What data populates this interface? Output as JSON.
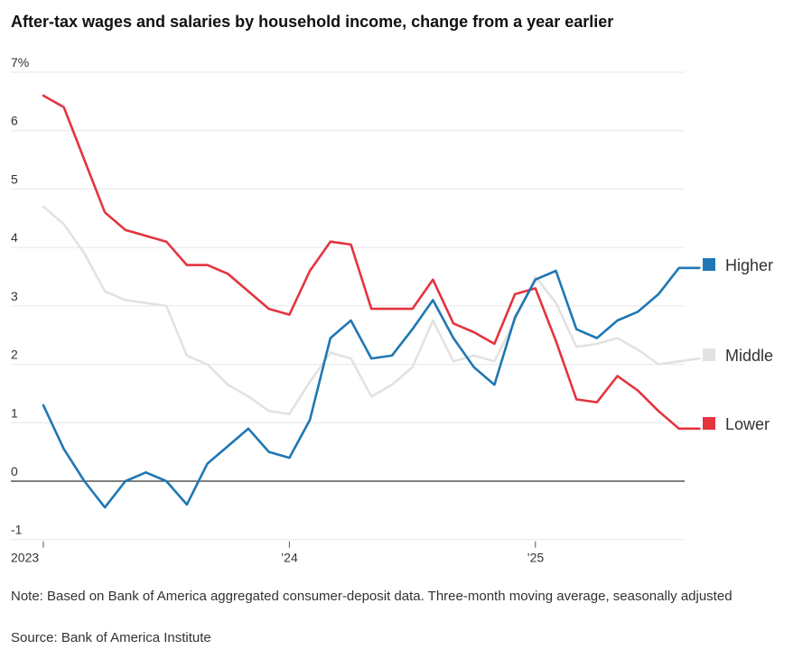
{
  "chart_data": {
    "type": "line",
    "title": "After-tax wages and salaries by household income, change from a year earlier",
    "xlabel": "",
    "ylabel": "",
    "x": [
      "2023-01",
      "2023-02",
      "2023-03",
      "2023-04",
      "2023-05",
      "2023-06",
      "2023-07",
      "2023-08",
      "2023-09",
      "2023-10",
      "2023-11",
      "2023-12",
      "2024-01",
      "2024-02",
      "2024-03",
      "2024-04",
      "2024-05",
      "2024-06",
      "2024-07",
      "2024-08",
      "2024-09",
      "2024-10",
      "2024-11",
      "2024-12",
      "2025-01",
      "2025-02",
      "2025-03",
      "2025-04",
      "2025-05",
      "2025-06",
      "2025-07",
      "2025-08",
      "2025-09"
    ],
    "x_ticks": [
      {
        "x": "2023-01",
        "label": "2023"
      },
      {
        "x": "2024-01",
        "label": "’24"
      },
      {
        "x": "2025-01",
        "label": "’25"
      }
    ],
    "ylim": [
      -1,
      7
    ],
    "y_ticks": [
      {
        "value": 7,
        "label": "7%"
      },
      {
        "value": 6,
        "label": "6"
      },
      {
        "value": 5,
        "label": "5"
      },
      {
        "value": 4,
        "label": "4"
      },
      {
        "value": 3,
        "label": "3"
      },
      {
        "value": 2,
        "label": "2"
      },
      {
        "value": 1,
        "label": "1"
      },
      {
        "value": 0,
        "label": "0"
      },
      {
        "value": -1,
        "label": "-1"
      }
    ],
    "grid": true,
    "legend_position": "right",
    "series": [
      {
        "name": "Middle",
        "color": "#e2e2e2",
        "values": [
          4.7,
          4.4,
          3.9,
          3.25,
          3.1,
          3.05,
          3.0,
          2.15,
          2.0,
          1.65,
          1.45,
          1.2,
          1.15,
          1.7,
          2.2,
          2.1,
          1.45,
          1.65,
          1.95,
          2.75,
          2.05,
          2.15,
          2.05,
          2.75,
          3.5,
          3.05,
          2.3,
          2.35,
          2.45,
          2.25,
          2.0,
          2.05,
          2.1
        ]
      },
      {
        "name": "Lower",
        "color": "#e4343e",
        "values": [
          6.6,
          6.4,
          5.5,
          4.6,
          4.3,
          4.2,
          4.1,
          3.7,
          3.7,
          3.55,
          3.25,
          2.95,
          2.85,
          3.6,
          4.1,
          4.05,
          2.95,
          2.95,
          2.95,
          3.45,
          2.7,
          2.55,
          2.35,
          3.2,
          3.3,
          2.4,
          1.4,
          1.35,
          1.8,
          1.55,
          1.2,
          0.9,
          0.9
        ]
      },
      {
        "name": "Higher",
        "color": "#1f77b4",
        "values": [
          1.3,
          0.55,
          0.0,
          -0.45,
          0.0,
          0.15,
          0.0,
          -0.4,
          0.3,
          0.6,
          0.9,
          0.5,
          0.4,
          1.05,
          2.45,
          2.75,
          2.1,
          2.15,
          2.6,
          3.1,
          2.45,
          1.95,
          1.65,
          2.8,
          3.45,
          3.6,
          2.6,
          2.45,
          2.75,
          2.9,
          3.2,
          3.65,
          3.65
        ]
      }
    ],
    "note": "Note: Based on Bank of America aggregated consumer-deposit data. Three-month moving average, seasonally adjusted",
    "source": "Source: Bank of America Institute"
  }
}
